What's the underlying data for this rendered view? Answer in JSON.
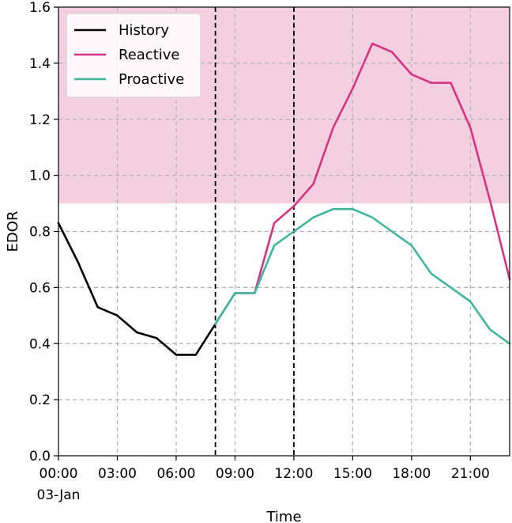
{
  "chart_data": {
    "type": "line",
    "xlabel": "Time",
    "ylabel": "EDOR",
    "ylim": [
      0,
      1.6
    ],
    "xlim": [
      "00:00",
      "23:00"
    ],
    "x_ticks": [
      {
        "hour": 0,
        "label": "00:00",
        "sublabel": "03-Jan"
      },
      {
        "hour": 3,
        "label": "03:00"
      },
      {
        "hour": 6,
        "label": "06:00"
      },
      {
        "hour": 9,
        "label": "09:00"
      },
      {
        "hour": 12,
        "label": "12:00"
      },
      {
        "hour": 15,
        "label": "15:00"
      },
      {
        "hour": 18,
        "label": "18:00"
      },
      {
        "hour": 21,
        "label": "21:00"
      }
    ],
    "y_ticks": [
      {
        "value": 0.0,
        "label": "0.0"
      },
      {
        "value": 0.2,
        "label": "0.2"
      },
      {
        "value": 0.4,
        "label": "0.4"
      },
      {
        "value": 0.6,
        "label": "0.6"
      },
      {
        "value": 0.8,
        "label": "0.8"
      },
      {
        "value": 1.0,
        "label": "1.0"
      },
      {
        "value": 1.2,
        "label": "1.2"
      },
      {
        "value": 1.4,
        "label": "1.4"
      },
      {
        "value": 1.6,
        "label": "1.6"
      }
    ],
    "grid": true,
    "legend_position": "top-left",
    "shaded_region": {
      "y_from": 0.9,
      "y_to": 1.6,
      "color": "#f4cfe0"
    },
    "vertical_markers": [
      8,
      12
    ],
    "series": [
      {
        "name": "History",
        "color": "#000000",
        "x": [
          0,
          1,
          2,
          3,
          4,
          5,
          6,
          7,
          8
        ],
        "values": [
          0.83,
          0.69,
          0.53,
          0.5,
          0.44,
          0.42,
          0.36,
          0.36,
          0.47
        ]
      },
      {
        "name": "Reactive",
        "color": "#d63384",
        "x": [
          8,
          9,
          10,
          11,
          12,
          13,
          14,
          15,
          16,
          17,
          18,
          19,
          20,
          21,
          22,
          23
        ],
        "values": [
          0.47,
          0.58,
          0.58,
          0.83,
          0.89,
          0.97,
          1.17,
          1.31,
          1.47,
          1.44,
          1.36,
          1.33,
          1.33,
          1.17,
          0.91,
          0.63
        ]
      },
      {
        "name": "Proactive",
        "color": "#40b59e",
        "x": [
          8,
          9,
          10,
          11,
          12,
          13,
          14,
          15,
          16,
          17,
          18,
          19,
          20,
          21,
          22,
          23
        ],
        "values": [
          0.47,
          0.58,
          0.58,
          0.75,
          0.8,
          0.85,
          0.88,
          0.88,
          0.85,
          0.8,
          0.75,
          0.65,
          0.6,
          0.55,
          0.45,
          0.4
        ]
      }
    ]
  }
}
